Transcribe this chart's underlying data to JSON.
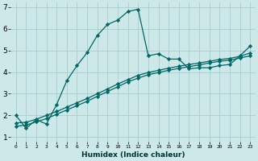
{
  "xlabel": "Humidex (Indice chaleur)",
  "ylabel": "",
  "bg_color": "#cce8e8",
  "grid_color": "#aacccc",
  "line_color": "#006666",
  "xlim": [
    -0.5,
    23.5
  ],
  "ylim": [
    0.8,
    7.2
  ],
  "xticks": [
    0,
    1,
    2,
    3,
    4,
    5,
    6,
    7,
    8,
    9,
    10,
    11,
    12,
    13,
    14,
    15,
    16,
    17,
    18,
    19,
    20,
    21,
    22,
    23
  ],
  "yticks": [
    1,
    2,
    3,
    4,
    5,
    6,
    7
  ],
  "line1_x": [
    0,
    1,
    2,
    3,
    4,
    5,
    6,
    7,
    8,
    9,
    10,
    11,
    12,
    13,
    14,
    15,
    16,
    17,
    18,
    19,
    20,
    21,
    22,
    23
  ],
  "line1_y": [
    2.0,
    1.4,
    1.8,
    1.6,
    2.5,
    3.6,
    4.3,
    4.9,
    5.7,
    6.2,
    6.4,
    6.8,
    6.9,
    4.75,
    4.85,
    4.6,
    4.6,
    4.15,
    4.2,
    4.2,
    4.3,
    4.35,
    4.75,
    5.2
  ],
  "line2_x": [
    0,
    1,
    2,
    3,
    4,
    5,
    6,
    7,
    8,
    9,
    10,
    11,
    12,
    13,
    14,
    15,
    16,
    17,
    18,
    19,
    20,
    21,
    22,
    23
  ],
  "line2_y": [
    1.5,
    1.55,
    1.7,
    1.85,
    2.05,
    2.25,
    2.45,
    2.65,
    2.88,
    3.1,
    3.32,
    3.55,
    3.72,
    3.88,
    3.98,
    4.08,
    4.17,
    4.25,
    4.33,
    4.42,
    4.5,
    4.55,
    4.65,
    4.75
  ],
  "line3_x": [
    0,
    1,
    2,
    3,
    4,
    5,
    6,
    7,
    8,
    9,
    10,
    11,
    12,
    13,
    14,
    15,
    16,
    17,
    18,
    19,
    20,
    21,
    22,
    23
  ],
  "line3_y": [
    1.65,
    1.68,
    1.82,
    2.0,
    2.18,
    2.38,
    2.58,
    2.78,
    3.0,
    3.22,
    3.45,
    3.65,
    3.85,
    3.98,
    4.08,
    4.18,
    4.27,
    4.35,
    4.42,
    4.5,
    4.58,
    4.63,
    4.73,
    4.88
  ]
}
